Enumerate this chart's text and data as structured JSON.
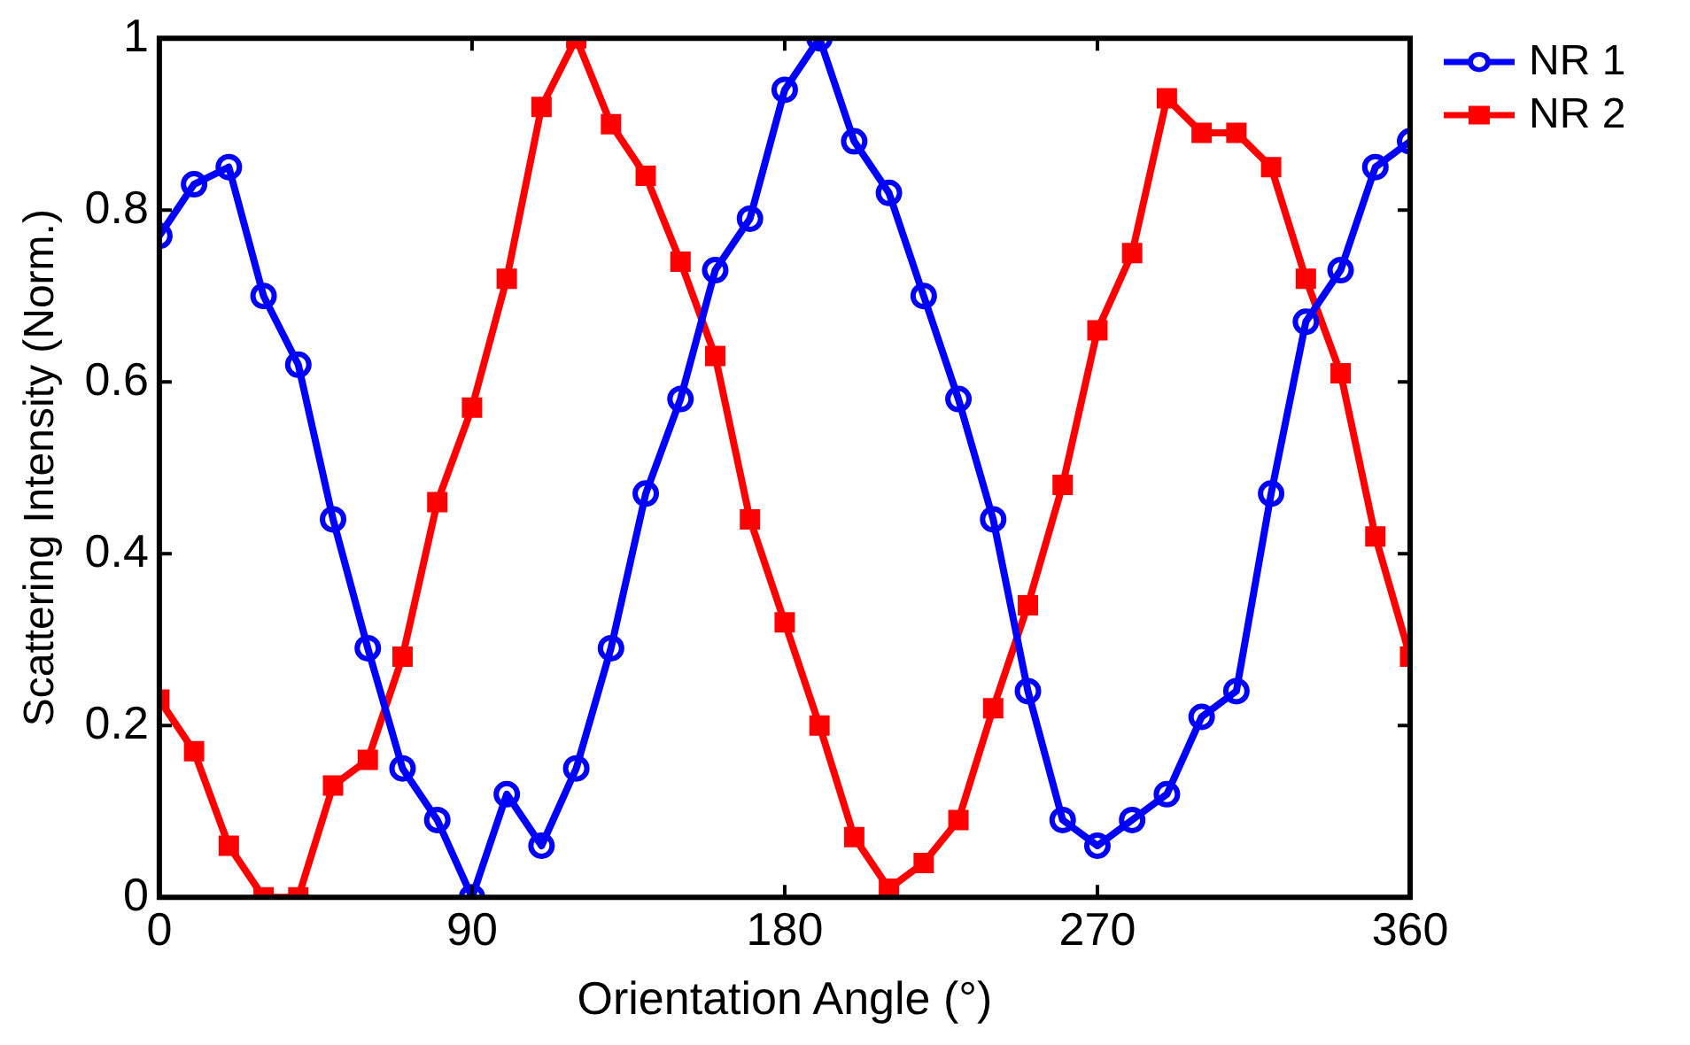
{
  "chart_data": {
    "type": "line",
    "xlabel": "Orientation Angle (°)",
    "ylabel": "Scattering Intensity (Norm.)",
    "x": [
      0,
      10,
      20,
      30,
      40,
      50,
      60,
      70,
      80,
      90,
      100,
      110,
      120,
      130,
      140,
      150,
      160,
      170,
      180,
      190,
      200,
      210,
      220,
      230,
      240,
      250,
      260,
      270,
      280,
      290,
      300,
      310,
      320,
      330,
      340,
      350,
      360
    ],
    "series": [
      {
        "name": "NR 1",
        "color": "#0000ff",
        "marker": "circle",
        "values": [
          0.77,
          0.83,
          0.85,
          0.7,
          0.62,
          0.44,
          0.29,
          0.15,
          0.09,
          0.0,
          0.12,
          0.06,
          0.15,
          0.29,
          0.47,
          0.58,
          0.73,
          0.79,
          0.94,
          1.0,
          0.88,
          0.82,
          0.7,
          0.58,
          0.44,
          0.24,
          0.09,
          0.06,
          0.09,
          0.12,
          0.21,
          0.24,
          0.47,
          0.67,
          0.73,
          0.85,
          0.88
        ]
      },
      {
        "name": "NR 2",
        "color": "#ff0000",
        "marker": "square",
        "values": [
          0.23,
          0.17,
          0.06,
          0.0,
          0.0,
          0.13,
          0.16,
          0.28,
          0.46,
          0.57,
          0.72,
          0.92,
          1.0,
          0.9,
          0.84,
          0.74,
          0.63,
          0.44,
          0.32,
          0.2,
          0.07,
          0.01,
          0.04,
          0.09,
          0.22,
          0.34,
          0.48,
          0.66,
          0.75,
          0.93,
          0.89,
          0.89,
          0.85,
          0.72,
          0.61,
          0.42,
          0.28
        ]
      }
    ],
    "xlim": [
      0,
      360
    ],
    "xticks": [
      0,
      90,
      180,
      270,
      360
    ],
    "ylim": [
      0,
      1
    ],
    "yticks": [
      0,
      0.2,
      0.4,
      0.6,
      0.8,
      1
    ],
    "grid": false,
    "legend": "top right",
    "line_style": "solid"
  }
}
